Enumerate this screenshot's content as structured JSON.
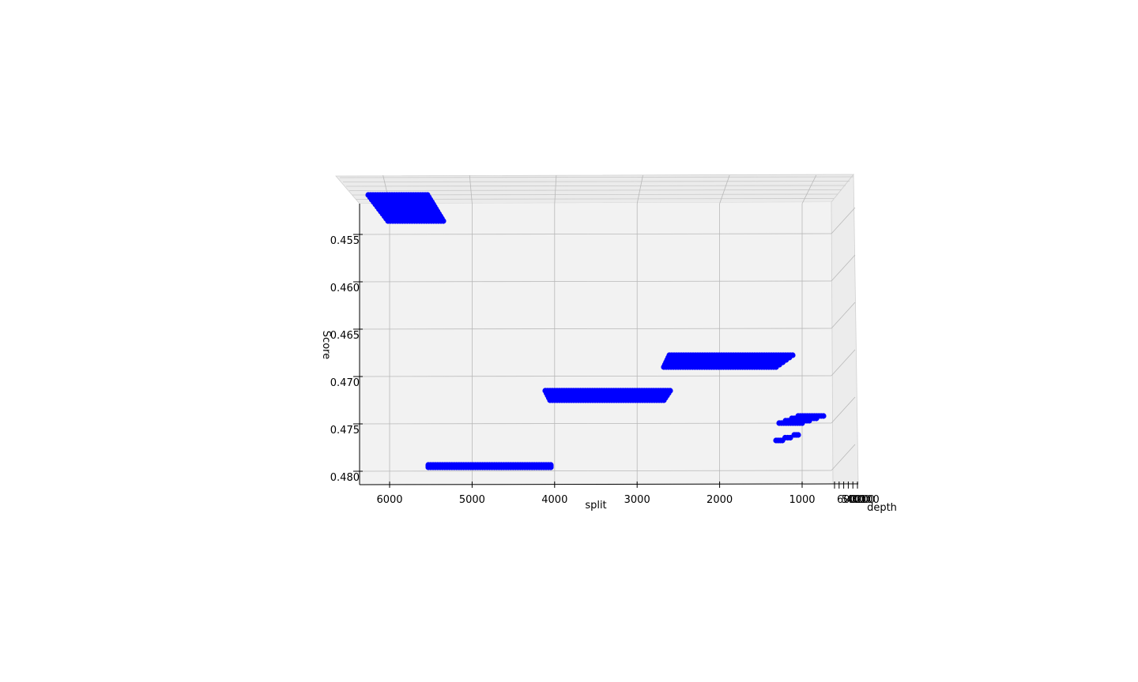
{
  "chart_data": {
    "type": "scatter",
    "projection": "3d",
    "title": "",
    "xlabel": "split",
    "ylabel": "depth",
    "zlabel": "Score",
    "z_inverted": true,
    "xlim": [
      6300,
      300
    ],
    "zlim": [
      0.48,
      0.451
    ],
    "x_ticks": [
      "6000",
      "5000",
      "4000",
      "3000",
      "2000",
      "1000"
    ],
    "z_ticks": [
      "0.455",
      "0.460",
      "0.465",
      "0.470",
      "0.475",
      "0.480"
    ],
    "depth_ticks": [
      "600",
      "500",
      "400",
      "300",
      "200",
      "100"
    ],
    "grid": true,
    "marker_color": "#0000ff",
    "clusters": [
      {
        "x_range": [
          5250,
          6250
        ],
        "score_range": [
          0.4525,
          0.4555
        ]
      },
      {
        "x_range": [
          1380,
          2580
        ],
        "score_range": [
          0.4675,
          0.469
        ]
      },
      {
        "x_range": [
          2620,
          4050
        ],
        "score_range": [
          0.4715,
          0.4728
        ]
      },
      {
        "x_range": [
          4050,
          5480
        ],
        "score_range": [
          0.4794,
          0.4797
        ]
      },
      {
        "x_range": [
          940,
          1300
        ],
        "score_range": [
          0.474,
          0.475
        ]
      },
      {
        "x_range": [
          1010,
          1280
        ],
        "score_range": [
          0.4765,
          0.477
        ]
      }
    ]
  }
}
